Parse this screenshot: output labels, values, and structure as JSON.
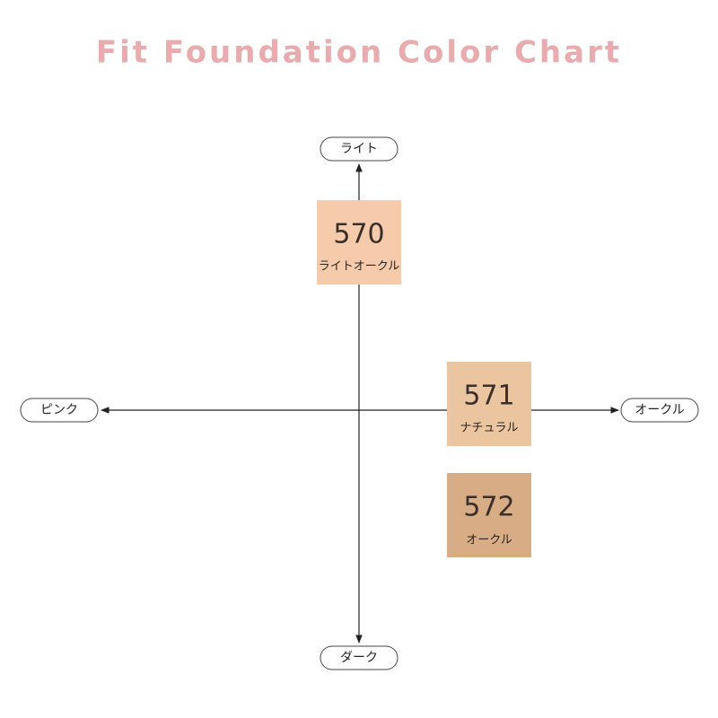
{
  "header": {
    "title": "Fit Foundation Color Chart"
  },
  "axes": {
    "top": "ライト",
    "bottom": "ダーク",
    "left": "ピンク",
    "right": "オークル"
  },
  "swatches": [
    {
      "code": "570",
      "name": "ライトオークル"
    },
    {
      "code": "571",
      "name": "ナチュラル"
    },
    {
      "code": "572",
      "name": "オークル"
    }
  ]
}
